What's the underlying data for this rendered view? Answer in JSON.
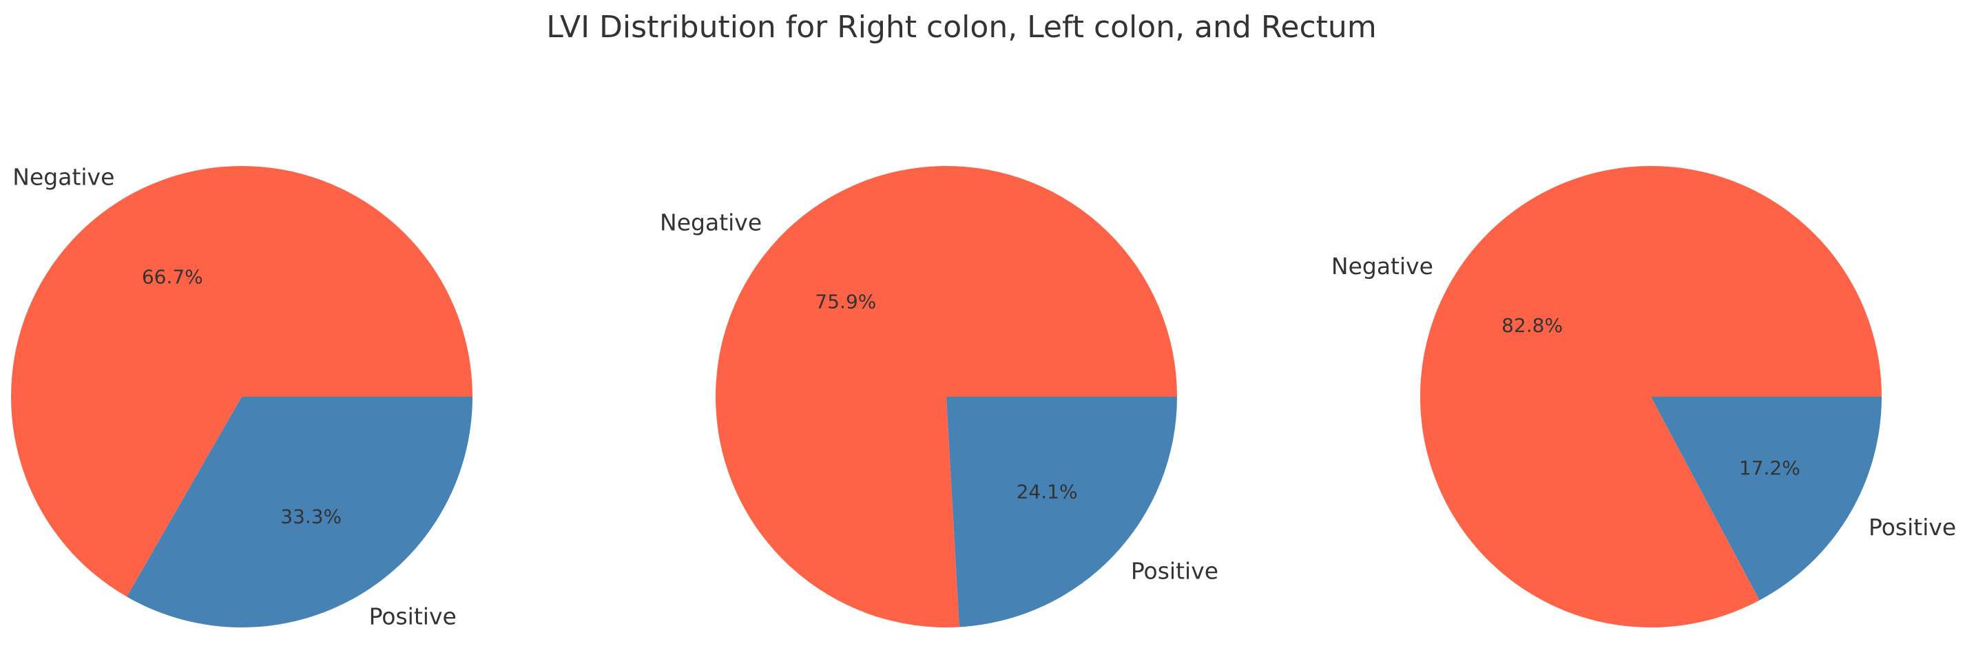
{
  "title": "LVI Distribution for Right colon, Left colon, and Rectum",
  "colors": {
    "Negative": "#ff6347",
    "Positive": "#4682b4",
    "text": "#333333"
  },
  "chart_data": [
    {
      "type": "pie",
      "title": "",
      "labels": [
        "Negative",
        "Positive"
      ],
      "values": [
        66.7,
        33.3
      ],
      "pct_labels": [
        "66.7%",
        "33.3%"
      ]
    },
    {
      "type": "pie",
      "title": "",
      "labels": [
        "Negative",
        "Positive"
      ],
      "values": [
        75.9,
        24.1
      ],
      "pct_labels": [
        "75.9%",
        "24.1%"
      ]
    },
    {
      "type": "pie",
      "title": "",
      "labels": [
        "Negative",
        "Positive"
      ],
      "values": [
        82.8,
        17.2
      ],
      "pct_labels": [
        "82.8%",
        "17.2%"
      ]
    }
  ]
}
